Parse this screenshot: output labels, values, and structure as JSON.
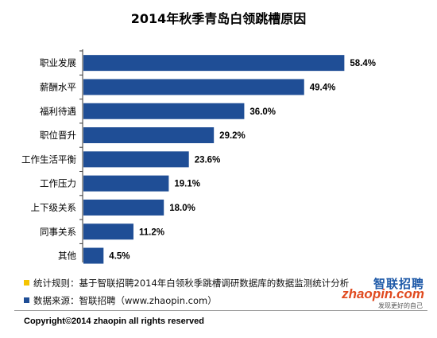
{
  "chart_data": {
    "type": "bar",
    "orientation": "horizontal",
    "title": "2014年秋季青岛白领跳槽原因",
    "categories": [
      "职业发展",
      "薪酬水平",
      "福利待遇",
      "职位晋升",
      "工作生活平衡",
      "工作压力",
      "上下级关系",
      "同事关系",
      "其他"
    ],
    "values": [
      58.4,
      49.4,
      36.0,
      29.2,
      23.6,
      19.1,
      18.0,
      11.2,
      4.5
    ],
    "value_labels": [
      "58.4%",
      "49.4%",
      "36.0%",
      "29.2%",
      "23.6%",
      "19.1%",
      "18.0%",
      "11.2%",
      "4.5%"
    ],
    "xlim": [
      0,
      60
    ],
    "grid": false,
    "bar_color": "#1f4e96"
  },
  "notes": [
    {
      "label": "统计规则：",
      "text": "基于智联招聘2014年白领秋季跳槽调研数据库的数据监测统计分析",
      "marker_color": "#f5c400"
    },
    {
      "label": "数据来源：",
      "text": "智联招聘（www.zhaopin.com）",
      "marker_color": "#1f4e96"
    }
  ],
  "logo": {
    "cn": "智联招聘",
    "en": "zhaopin.com",
    "tagline": "发现更好的自己"
  },
  "footer": {
    "copyright": "Copyright©2014 zhaopin all rights reserved"
  }
}
